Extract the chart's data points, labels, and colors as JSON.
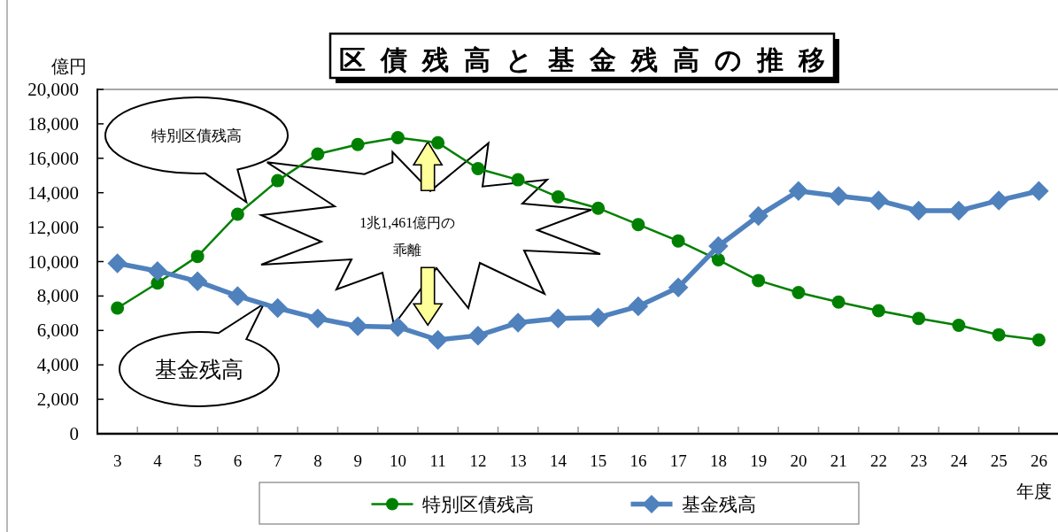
{
  "chart_data": {
    "type": "line",
    "title": "区債残高と基金残高の推移",
    "ylabel": "億円",
    "xlabel": "年度",
    "categories": [
      "3",
      "4",
      "5",
      "6",
      "7",
      "8",
      "9",
      "10",
      "11",
      "12",
      "13",
      "14",
      "15",
      "16",
      "17",
      "18",
      "19",
      "20",
      "21",
      "22",
      "23",
      "24",
      "25",
      "26"
    ],
    "series": [
      {
        "name": "特別区債残高",
        "color": "#008000",
        "marker": "circle",
        "values": [
          7300,
          8750,
          10300,
          12750,
          14700,
          16250,
          16800,
          17200,
          16900,
          15400,
          14750,
          13750,
          13100,
          12150,
          11200,
          10100,
          8900,
          8200,
          7650,
          7150,
          6700,
          6300,
          5750,
          5450
        ]
      },
      {
        "name": "基金残高",
        "color": "#4f81bd",
        "marker": "diamond",
        "values": [
          9900,
          9450,
          8850,
          8000,
          7300,
          6700,
          6250,
          6200,
          5450,
          5700,
          6450,
          6700,
          6750,
          7400,
          8500,
          10900,
          12650,
          14100,
          13800,
          13550,
          12950,
          12950,
          13550,
          14100
        ]
      }
    ],
    "ylim": [
      0,
      20000
    ],
    "yticks": [
      0,
      {
        "value": 2000,
        "label": "2,000"
      },
      {
        "value": 4000,
        "label": "4,000"
      },
      {
        "value": 6000,
        "label": "6,000"
      },
      {
        "value": 8000,
        "label": "8,000"
      },
      {
        "value": 10000,
        "label": "10,000"
      },
      {
        "value": 12000,
        "label": "12,000"
      },
      {
        "value": 14000,
        "label": "14,000"
      },
      {
        "value": 16000,
        "label": "16,000"
      },
      {
        "value": 18000,
        "label": "18,000"
      },
      {
        "value": 20000,
        "label": "20,000"
      }
    ],
    "legend": "bottom",
    "annotations": [
      "特別区債残高",
      "基金残高",
      "1兆1,461億円の乖離"
    ]
  }
}
